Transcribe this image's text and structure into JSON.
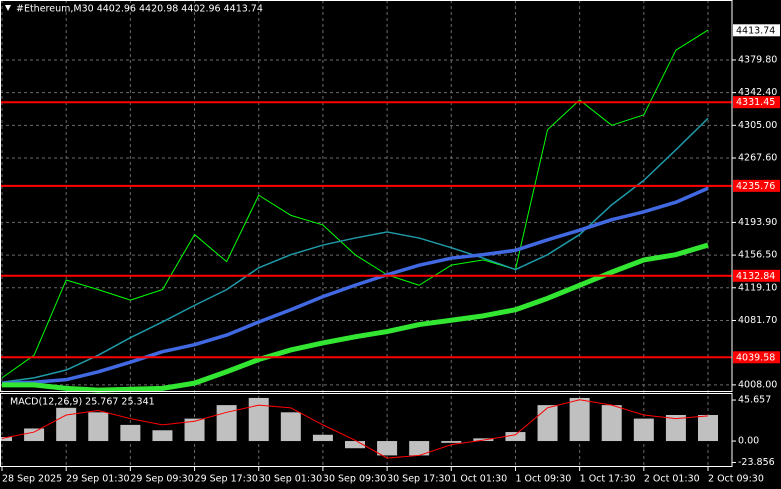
{
  "chart_data": [
    {
      "type": "line",
      "title": "#Ethereum,M30  4402.96 4420.98 4402.96 4413.74",
      "categories": [
        "28 Sep 2025",
        null,
        "29 Sep 01:30",
        null,
        "29 Sep 09:30",
        null,
        "29 Sep 17:30",
        null,
        "30 Sep 01:30",
        null,
        "30 Sep 09:30",
        null,
        "30 Sep 17:30",
        null,
        "1 Oct 01:30",
        null,
        "1 Oct 09:30",
        null,
        "1 Oct 17:30",
        null,
        "2 Oct 01:30",
        null,
        "2 Oct 09:30"
      ],
      "series": [
        {
          "color": "#00ff00",
          "width": 1,
          "values": [
            4016,
            4042,
            4128,
            4117,
            4105,
            4117,
            4180,
            4149,
            4225,
            4202,
            4191,
            4157,
            4134,
            4122,
            4145,
            4151,
            4140,
            4300,
            4334,
            4305,
            4317,
            4391,
            4414
          ]
        },
        {
          "color": "#1e9aa8",
          "width": 1.5,
          "values": [
            4011,
            4016,
            4025,
            4042,
            4062,
            4080,
            4099,
            4117,
            4142,
            4157,
            4168,
            4176,
            4183,
            4176,
            4165,
            4153,
            4140,
            4157,
            4180,
            4214,
            4242,
            4277,
            4313
          ]
        },
        {
          "color": "#4169e1",
          "width": 3.5,
          "values": [
            4010,
            4011,
            4014,
            4023,
            4034,
            4046,
            4054,
            4065,
            4080,
            4094,
            4109,
            4122,
            4134,
            4145,
            4153,
            4157,
            4162,
            4174,
            4185,
            4197,
            4206,
            4217,
            4233
          ]
        },
        {
          "color": "#32e632",
          "width": 5,
          "values": [
            4008,
            4008,
            4004,
            4002,
            4003,
            4004,
            4010,
            4023,
            4037,
            4048,
            4056,
            4063,
            4069,
            4077,
            4082,
            4087,
            4094,
            4107,
            4122,
            4137,
            4151,
            4157,
            4168
          ]
        }
      ],
      "ylim": [
        4001,
        4448.4
      ],
      "yticks": [
        {
          "value": 4379.8,
          "label": "4379.80"
        },
        {
          "value": 4342.4,
          "label": "4342.40"
        },
        {
          "value": 4305,
          "label": "4305.00"
        },
        {
          "value": 4267.6,
          "label": "4267.60"
        },
        {
          "value": 4193.9,
          "label": "4193.90"
        },
        {
          "value": 4156.5,
          "label": "4156.50"
        },
        {
          "value": 4119.1,
          "label": "4119.10"
        },
        {
          "value": 4081.7,
          "label": "4081.70"
        },
        {
          "value": 4008,
          "label": "4008.00"
        }
      ],
      "hlines": [
        {
          "value": 4331.45,
          "label": "4331.45"
        },
        {
          "value": 4235.76,
          "label": "4235.76"
        },
        {
          "value": 4132.84,
          "label": "4132.84"
        },
        {
          "value": 4039.58,
          "label": "4039.58"
        }
      ],
      "hline_color": "#ff0000",
      "last_price": {
        "value": 4413.74,
        "label": "4413.74"
      },
      "grid": true
    },
    {
      "type": "bar",
      "title": "MACD(12,26,9) 25.767 25.341",
      "values": [
        4.5,
        14,
        37,
        32,
        18,
        12,
        25,
        40,
        48,
        32,
        7,
        -8,
        -16,
        -16,
        -2,
        3,
        10,
        40,
        48,
        40,
        25,
        29,
        29
      ],
      "color": "#c0c0c0",
      "signal": {
        "color": "#ff0000",
        "values": [
          3,
          10,
          29,
          34,
          25,
          18,
          22,
          32,
          40,
          37,
          18,
          1,
          -19,
          -16,
          -4,
          1,
          7,
          37,
          46,
          40,
          29,
          25,
          28
        ]
      },
      "ylim": [
        -28.9,
        53.5
      ],
      "yticks": [
        45.657,
        {
          "value": 0,
          "label": "0.00"
        },
        -23.856
      ]
    }
  ]
}
